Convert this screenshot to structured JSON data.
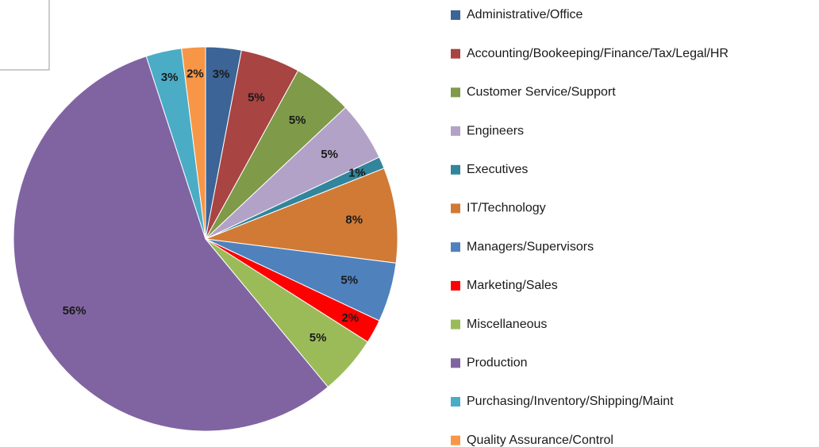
{
  "chart_data": {
    "type": "pie",
    "categories": [
      "Administrative/Office",
      "Accounting/Bookeeping/Finance/Tax/Legal/HR",
      "Customer Service/Support",
      "Engineers",
      "Executives",
      "IT/Technology",
      "Managers/Supervisors",
      "Marketing/Sales",
      "Miscellaneous",
      "Production",
      "Purchasing/Inventory/Shipping/Maint",
      "Quality Assurance/Control"
    ],
    "values": [
      3,
      5,
      5,
      5,
      1,
      8,
      5,
      2,
      5,
      56,
      3,
      2
    ],
    "value_labels": [
      "3%",
      "5%",
      "5%",
      "5%",
      "1%",
      "8%",
      "5%",
      "2%",
      "5%",
      "56%",
      "3%",
      "2%"
    ],
    "colors": [
      "#3c6496",
      "#a84442",
      "#7f9a48",
      "#b3a2c7",
      "#31859c",
      "#d07a36",
      "#4f81bd",
      "#ff0000",
      "#9bbb59",
      "#8064a2",
      "#4bacc6",
      "#f79646"
    ],
    "legend": "right"
  }
}
